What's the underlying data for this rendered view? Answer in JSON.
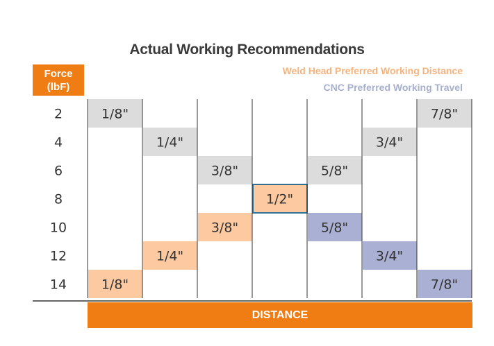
{
  "colors": {
    "orange": "#f07d13",
    "gray_cell": "#dcdcdc",
    "weld_cell": "#fcc9a0",
    "cnc_cell": "#a9b0d3",
    "legend_weld": "#f7b27c",
    "legend_cnc": "#a7afd0"
  },
  "chart_data": {
    "type": "table",
    "title": "Actual Working Recommendations",
    "row_header": [
      "Force",
      "(lbF)"
    ],
    "legend": [
      {
        "label": "Weld Head Preferred Working Distance",
        "category": "weld"
      },
      {
        "label": "CNC Preferred Working Travel",
        "category": "cnc"
      }
    ],
    "x_label": "DISTANCE",
    "forces": [
      "2",
      "4",
      "6",
      "8",
      "10",
      "12",
      "14"
    ],
    "cells": [
      {
        "force": "2",
        "column": 1,
        "label": "1/8\"",
        "category": "gray"
      },
      {
        "force": "2",
        "column": 7,
        "label": "7/8\"",
        "category": "gray"
      },
      {
        "force": "4",
        "column": 2,
        "label": "1/4\"",
        "category": "gray"
      },
      {
        "force": "4",
        "column": 6,
        "label": "3/4\"",
        "category": "gray"
      },
      {
        "force": "6",
        "column": 3,
        "label": "3/8\"",
        "category": "gray"
      },
      {
        "force": "6",
        "column": 5,
        "label": "5/8\"",
        "category": "gray"
      },
      {
        "force": "8",
        "column": 4,
        "label": "1/2\"",
        "category": "weld-outlined"
      },
      {
        "force": "10",
        "column": 3,
        "label": "3/8\"",
        "category": "weld"
      },
      {
        "force": "10",
        "column": 5,
        "label": "5/8\"",
        "category": "cnc"
      },
      {
        "force": "12",
        "column": 2,
        "label": "1/4\"",
        "category": "weld"
      },
      {
        "force": "12",
        "column": 6,
        "label": "3/4\"",
        "category": "cnc"
      },
      {
        "force": "14",
        "column": 1,
        "label": "1/8\"",
        "category": "weld"
      },
      {
        "force": "14",
        "column": 7,
        "label": "7/8\"",
        "category": "cnc"
      }
    ]
  }
}
